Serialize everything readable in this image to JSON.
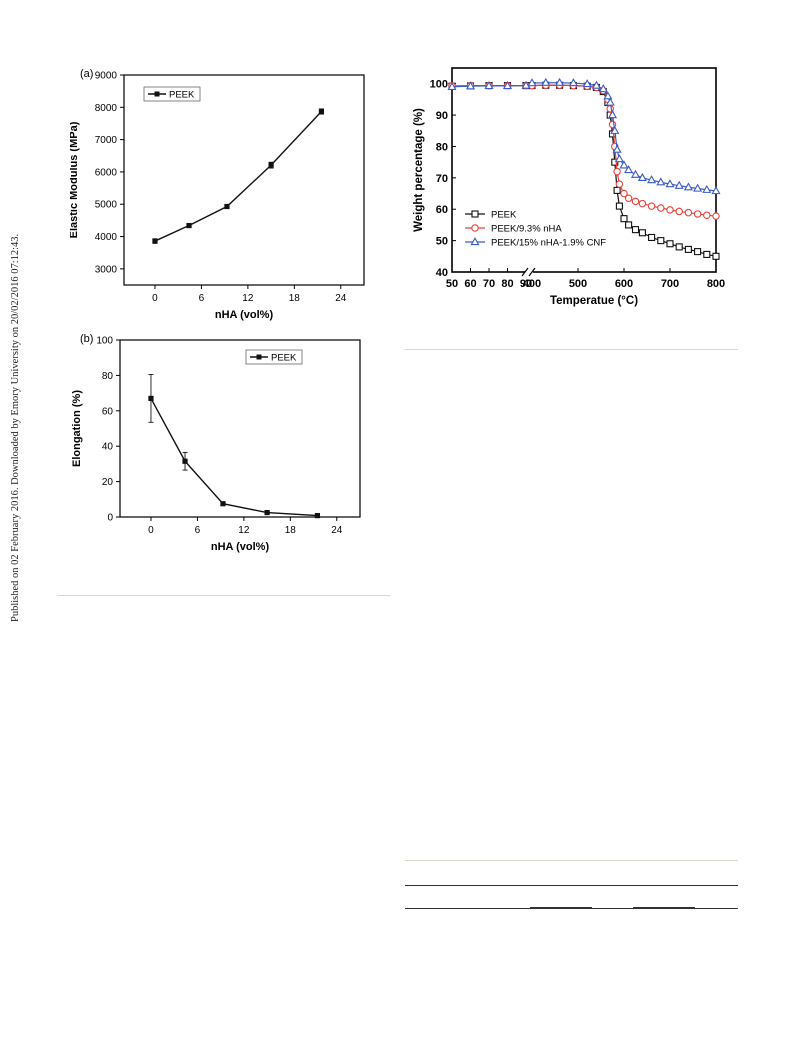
{
  "side_note": "Published on 02 February 2016. Downloaded by Emory University on 20/02/2016 07:12:43.",
  "chart_data": [
    {
      "panel_label": "(a)",
      "type": "line",
      "x": [
        0,
        4.4,
        9.3,
        15,
        21.5
      ],
      "series": [
        {
          "name": "PEEK",
          "values": [
            3860,
            4340,
            4930,
            6210,
            7870
          ],
          "errors": [
            70,
            50,
            35,
            90,
            80
          ]
        }
      ],
      "xlabel": "nHA (vol%)",
      "ylabel": "Elastic Modulus (MPa)",
      "xlim": [
        -4,
        27
      ],
      "ylim": [
        2500,
        9000
      ],
      "x_ticks": [
        "0",
        "6",
        "12",
        "18",
        "24"
      ],
      "y_ticks": [
        "3000",
        "4000",
        "5000",
        "6000",
        "7000",
        "8000",
        "9000"
      ],
      "legend_position": "top-left"
    },
    {
      "panel_label": "(b)",
      "type": "line",
      "x": [
        0,
        4.4,
        9.3,
        15,
        21.5
      ],
      "series": [
        {
          "name": "PEEK",
          "values": [
            67,
            31.5,
            7.5,
            2.5,
            0.8
          ],
          "errors": [
            13.5,
            5,
            0.8,
            0.5,
            0.3
          ]
        }
      ],
      "xlabel": "nHA (vol%)",
      "ylabel": "Elongation (%)",
      "xlim": [
        -4,
        27
      ],
      "ylim": [
        0,
        100
      ],
      "x_ticks": [
        "0",
        "6",
        "12",
        "18",
        "24"
      ],
      "y_ticks": [
        "0",
        "20",
        "40",
        "60",
        "80",
        "100"
      ],
      "legend_position": "top-right"
    },
    {
      "type": "line",
      "xlabel": "Temperatue (°C)",
      "ylabel": "Weight percentage (%)",
      "ylim": [
        40,
        105
      ],
      "axis_break": [
        90,
        400
      ],
      "x_ticks": [
        "50",
        "60",
        "70",
        "80",
        "90",
        "400",
        "500",
        "600",
        "700",
        "800"
      ],
      "y_ticks": [
        "40",
        "50",
        "60",
        "70",
        "80",
        "90",
        "100"
      ],
      "legend_position": "bottom-left",
      "series": [
        {
          "name": "PEEK",
          "color": "#111111",
          "marker": "square",
          "x": [
            50,
            60,
            70,
            80,
            90,
            400,
            430,
            460,
            490,
            520,
            540,
            555,
            565,
            570,
            575,
            580,
            585,
            590,
            600,
            610,
            625,
            640,
            660,
            680,
            700,
            720,
            740,
            760,
            780,
            800
          ],
          "y": [
            99.2,
            99.3,
            99.4,
            99.4,
            99.4,
            99.4,
            99.5,
            99.5,
            99.4,
            99.2,
            98.8,
            97.5,
            94,
            90,
            84,
            75,
            66,
            61,
            57,
            55,
            53.5,
            52.5,
            51,
            50,
            49,
            48,
            47.2,
            46.5,
            45.6,
            45
          ]
        },
        {
          "name": "PEEK/9.3% nHA",
          "color": "#e8413c",
          "marker": "circle",
          "x": [
            50,
            60,
            70,
            80,
            90,
            400,
            430,
            460,
            490,
            520,
            540,
            555,
            565,
            570,
            575,
            580,
            585,
            590,
            600,
            610,
            625,
            640,
            660,
            680,
            700,
            720,
            740,
            760,
            780,
            800
          ],
          "y": [
            99.3,
            99.4,
            99.4,
            99.4,
            99.4,
            99.4,
            99.5,
            99.5,
            99.4,
            99.2,
            98.8,
            97.8,
            95,
            92,
            87,
            80,
            72,
            68,
            65,
            63.5,
            62.5,
            61.8,
            61,
            60.4,
            59.8,
            59.3,
            58.9,
            58.5,
            58.1,
            57.8
          ]
        },
        {
          "name": "PEEK/15% nHA-1.9% CNF",
          "color": "#3b5cc7",
          "marker": "triangle",
          "x": [
            50,
            60,
            70,
            80,
            90,
            400,
            430,
            460,
            490,
            520,
            540,
            555,
            565,
            570,
            575,
            580,
            585,
            590,
            600,
            610,
            625,
            640,
            660,
            680,
            700,
            720,
            740,
            760,
            780,
            800
          ],
          "y": [
            99.0,
            99.2,
            99.3,
            99.3,
            99.4,
            100.2,
            100.3,
            100.3,
            100.2,
            99.9,
            99.4,
            98.3,
            96,
            94,
            90,
            85,
            79,
            76,
            74,
            72.5,
            71,
            70,
            69.3,
            68.6,
            68,
            67.5,
            67,
            66.6,
            66.2,
            65.8
          ]
        }
      ]
    }
  ]
}
